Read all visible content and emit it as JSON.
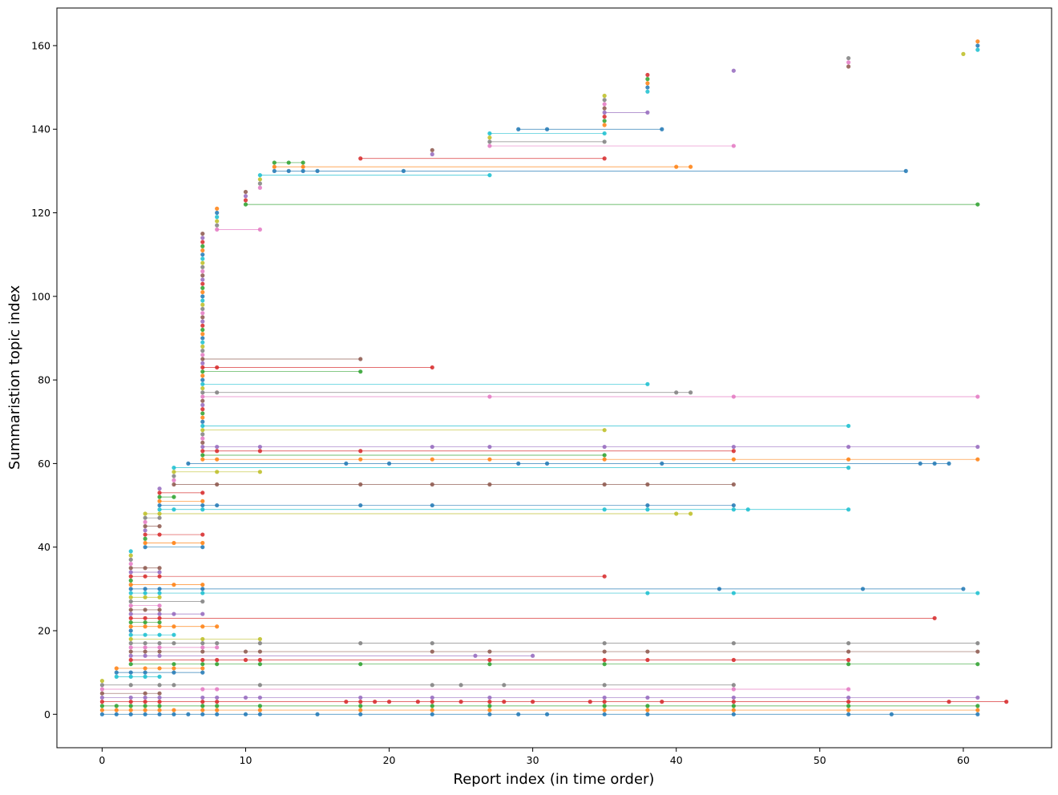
{
  "chart_data": {
    "type": "scatter",
    "title": "",
    "xlabel": "Report index (in time order)",
    "ylabel": "Summaristion topic index",
    "xlim": [
      -3.15,
      66.15
    ],
    "ylim": [
      -8,
      169
    ],
    "xticks": [
      0,
      10,
      20,
      30,
      40,
      50,
      60
    ],
    "yticks": [
      0,
      20,
      40,
      60,
      80,
      100,
      120,
      140,
      160
    ],
    "grid": false,
    "legend": "none",
    "palette": [
      "#1f77b4",
      "#ff7f0e",
      "#2ca02c",
      "#d62728",
      "#9467bd",
      "#8c564b",
      "#e377c2",
      "#7f7f7f",
      "#bcbd22",
      "#17becf"
    ],
    "topics": [
      {
        "topic": 0,
        "reports": [
          0,
          1,
          2,
          3,
          4,
          5,
          6,
          7,
          8,
          10,
          11,
          15,
          18,
          23,
          27,
          29,
          31,
          35,
          38,
          44,
          52,
          55,
          61
        ]
      },
      {
        "topic": 1,
        "reports": [
          0,
          1,
          2,
          3,
          4,
          5,
          7,
          8,
          11,
          18,
          23,
          27,
          35,
          38,
          44,
          52,
          61
        ]
      },
      {
        "topic": 2,
        "reports": [
          0,
          1,
          2,
          3,
          4,
          7,
          8,
          11,
          18,
          23,
          27,
          35,
          38,
          44,
          52,
          61
        ]
      },
      {
        "topic": 3,
        "reports": [
          0,
          2,
          3,
          4,
          7,
          8,
          17,
          18,
          19,
          20,
          22,
          23,
          25,
          27,
          28,
          30,
          34,
          35,
          39,
          44,
          52,
          59,
          63
        ]
      },
      {
        "topic": 4,
        "reports": [
          0,
          2,
          3,
          4,
          7,
          8,
          10,
          11,
          18,
          23,
          27,
          35,
          38,
          44,
          52,
          61
        ]
      },
      {
        "topic": 5,
        "reports": [
          0,
          3,
          4
        ]
      },
      {
        "topic": 6,
        "reports": [
          0,
          7,
          8,
          44,
          52
        ]
      },
      {
        "topic": 7,
        "reports": [
          0,
          2,
          4,
          5,
          11,
          23,
          25,
          28,
          35,
          44
        ]
      },
      {
        "topic": 8,
        "reports": [
          0
        ]
      },
      {
        "topic": 9,
        "reports": [
          1,
          2,
          3,
          4
        ]
      },
      {
        "topic": 10,
        "reports": [
          1,
          2,
          3,
          5,
          7
        ]
      },
      {
        "topic": 11,
        "reports": [
          1,
          3,
          4,
          5,
          7
        ]
      },
      {
        "topic": 12,
        "reports": [
          2,
          5,
          7,
          8,
          11,
          18,
          27,
          35,
          52,
          61
        ]
      },
      {
        "topic": 13,
        "reports": [
          2,
          7,
          8,
          10,
          11,
          27,
          35,
          38,
          44,
          52
        ]
      },
      {
        "topic": 14,
        "reports": [
          2,
          3,
          4,
          26,
          30
        ]
      },
      {
        "topic": 15,
        "reports": [
          2,
          3,
          4,
          7,
          10,
          11,
          23,
          27,
          35,
          38,
          52,
          61
        ]
      },
      {
        "topic": 16,
        "reports": [
          2,
          3,
          4,
          7,
          8
        ]
      },
      {
        "topic": 17,
        "reports": [
          2,
          3,
          4,
          5,
          7,
          8,
          11,
          18,
          23,
          35,
          44,
          52,
          61
        ]
      },
      {
        "topic": 18,
        "reports": [
          2,
          7,
          11
        ]
      },
      {
        "topic": 19,
        "reports": [
          2,
          3,
          4,
          5
        ]
      },
      {
        "topic": 20,
        "reports": [
          2
        ]
      },
      {
        "topic": 21,
        "reports": [
          2,
          3,
          4,
          5,
          7,
          8
        ]
      },
      {
        "topic": 22,
        "reports": [
          2,
          3,
          4
        ]
      },
      {
        "topic": 23,
        "reports": [
          2,
          3,
          4,
          58
        ]
      },
      {
        "topic": 24,
        "reports": [
          2,
          4,
          5,
          7
        ]
      },
      {
        "topic": 25,
        "reports": [
          2,
          3,
          4
        ]
      },
      {
        "topic": 26,
        "reports": [
          2,
          4
        ]
      },
      {
        "topic": 27,
        "reports": [
          2,
          7
        ]
      },
      {
        "topic": 28,
        "reports": [
          2,
          3,
          4
        ]
      },
      {
        "topic": 29,
        "reports": [
          2,
          3,
          4,
          7,
          38,
          44,
          61
        ]
      },
      {
        "topic": 30,
        "reports": [
          2,
          3,
          4,
          7,
          43,
          53,
          60
        ]
      },
      {
        "topic": 31,
        "reports": [
          2,
          5,
          7
        ]
      },
      {
        "topic": 32,
        "reports": [
          2
        ]
      },
      {
        "topic": 33,
        "reports": [
          2,
          3,
          4,
          35
        ]
      },
      {
        "topic": 34,
        "reports": [
          2,
          4
        ]
      },
      {
        "topic": 35,
        "reports": [
          2,
          3,
          4
        ]
      },
      {
        "topic": 36,
        "reports": [
          2
        ]
      },
      {
        "topic": 37,
        "reports": [
          2
        ]
      },
      {
        "topic": 38,
        "reports": [
          2
        ]
      },
      {
        "topic": 39,
        "reports": [
          2
        ]
      },
      {
        "topic": 40,
        "reports": [
          3,
          7
        ]
      },
      {
        "topic": 41,
        "reports": [
          3,
          5,
          7
        ]
      },
      {
        "topic": 42,
        "reports": [
          3
        ]
      },
      {
        "topic": 43,
        "reports": [
          3,
          4,
          7
        ]
      },
      {
        "topic": 44,
        "reports": [
          3
        ]
      },
      {
        "topic": 45,
        "reports": [
          3,
          4
        ]
      },
      {
        "topic": 46,
        "reports": [
          3
        ]
      },
      {
        "topic": 47,
        "reports": [
          3,
          4
        ]
      },
      {
        "topic": 48,
        "reports": [
          3,
          4,
          40,
          41
        ]
      },
      {
        "topic": 49,
        "reports": [
          4,
          5,
          7,
          35,
          38,
          44,
          45,
          52
        ]
      },
      {
        "topic": 50,
        "reports": [
          4,
          7,
          8,
          18,
          23,
          38,
          44
        ]
      },
      {
        "topic": 51,
        "reports": [
          4,
          7
        ]
      },
      {
        "topic": 52,
        "reports": [
          4,
          5
        ]
      },
      {
        "topic": 53,
        "reports": [
          4,
          7
        ]
      },
      {
        "topic": 54,
        "reports": [
          4
        ]
      },
      {
        "topic": 55,
        "reports": [
          5,
          8,
          18,
          23,
          27,
          35,
          38,
          44
        ]
      },
      {
        "topic": 56,
        "reports": [
          5
        ]
      },
      {
        "topic": 57,
        "reports": [
          5
        ]
      },
      {
        "topic": 58,
        "reports": [
          5,
          8,
          11
        ]
      },
      {
        "topic": 59,
        "reports": [
          5,
          52
        ]
      },
      {
        "topic": 60,
        "reports": [
          6,
          17,
          20,
          29,
          31,
          39,
          57,
          58,
          59
        ]
      },
      {
        "topic": 61,
        "reports": [
          7,
          8,
          18,
          23,
          27,
          35,
          44,
          52,
          61
        ]
      },
      {
        "topic": 62,
        "reports": [
          7,
          35
        ]
      },
      {
        "topic": 63,
        "reports": [
          7,
          8,
          11,
          18,
          44
        ]
      },
      {
        "topic": 64,
        "reports": [
          7,
          8,
          11,
          23,
          27,
          35,
          44,
          52,
          61
        ]
      },
      {
        "topic": 65,
        "reports": [
          7
        ]
      },
      {
        "topic": 66,
        "reports": [
          7
        ]
      },
      {
        "topic": 67,
        "reports": [
          7
        ]
      },
      {
        "topic": 68,
        "reports": [
          7,
          35
        ]
      },
      {
        "topic": 69,
        "reports": [
          7,
          52
        ]
      },
      {
        "topic": 70,
        "reports": [
          7
        ]
      },
      {
        "topic": 71,
        "reports": [
          7
        ]
      },
      {
        "topic": 72,
        "reports": [
          7
        ]
      },
      {
        "topic": 73,
        "reports": [
          7
        ]
      },
      {
        "topic": 74,
        "reports": [
          7
        ]
      },
      {
        "topic": 75,
        "reports": [
          7
        ]
      },
      {
        "topic": 76,
        "reports": [
          7,
          27,
          44,
          61
        ]
      },
      {
        "topic": 77,
        "reports": [
          7,
          8,
          40,
          41
        ]
      },
      {
        "topic": 78,
        "reports": [
          7
        ]
      },
      {
        "topic": 79,
        "reports": [
          7,
          38
        ]
      },
      {
        "topic": 80,
        "reports": [
          7
        ]
      },
      {
        "topic": 81,
        "reports": [
          7
        ]
      },
      {
        "topic": 82,
        "reports": [
          7,
          18
        ]
      },
      {
        "topic": 83,
        "reports": [
          7,
          8,
          23
        ]
      },
      {
        "topic": 84,
        "reports": [
          7
        ]
      },
      {
        "topic": 85,
        "reports": [
          7,
          18
        ]
      },
      {
        "topic": 86,
        "reports": [
          7
        ]
      },
      {
        "topic": 87,
        "reports": [
          7
        ]
      },
      {
        "topic": 88,
        "reports": [
          7
        ]
      },
      {
        "topic": 89,
        "reports": [
          7
        ]
      },
      {
        "topic": 90,
        "reports": [
          7
        ]
      },
      {
        "topic": 91,
        "reports": [
          7
        ]
      },
      {
        "topic": 92,
        "reports": [
          7
        ]
      },
      {
        "topic": 93,
        "reports": [
          7
        ]
      },
      {
        "topic": 94,
        "reports": [
          7
        ]
      },
      {
        "topic": 95,
        "reports": [
          7
        ]
      },
      {
        "topic": 96,
        "reports": [
          7
        ]
      },
      {
        "topic": 97,
        "reports": [
          7
        ]
      },
      {
        "topic": 98,
        "reports": [
          7
        ]
      },
      {
        "topic": 99,
        "reports": [
          7
        ]
      },
      {
        "topic": 100,
        "reports": [
          7
        ]
      },
      {
        "topic": 101,
        "reports": [
          7
        ]
      },
      {
        "topic": 102,
        "reports": [
          7
        ]
      },
      {
        "topic": 103,
        "reports": [
          7
        ]
      },
      {
        "topic": 104,
        "reports": [
          7
        ]
      },
      {
        "topic": 105,
        "reports": [
          7
        ]
      },
      {
        "topic": 106,
        "reports": [
          7
        ]
      },
      {
        "topic": 107,
        "reports": [
          7
        ]
      },
      {
        "topic": 108,
        "reports": [
          7
        ]
      },
      {
        "topic": 109,
        "reports": [
          7
        ]
      },
      {
        "topic": 110,
        "reports": [
          7
        ]
      },
      {
        "topic": 111,
        "reports": [
          7
        ]
      },
      {
        "topic": 112,
        "reports": [
          7
        ]
      },
      {
        "topic": 113,
        "reports": [
          7
        ]
      },
      {
        "topic": 114,
        "reports": [
          7
        ]
      },
      {
        "topic": 115,
        "reports": [
          7
        ]
      },
      {
        "topic": 116,
        "reports": [
          8,
          11
        ]
      },
      {
        "topic": 117,
        "reports": [
          8
        ]
      },
      {
        "topic": 118,
        "reports": [
          8
        ]
      },
      {
        "topic": 119,
        "reports": [
          8
        ]
      },
      {
        "topic": 120,
        "reports": [
          8
        ]
      },
      {
        "topic": 121,
        "reports": [
          8
        ]
      },
      {
        "topic": 122,
        "reports": [
          10,
          61
        ]
      },
      {
        "topic": 123,
        "reports": [
          10
        ]
      },
      {
        "topic": 124,
        "reports": [
          10
        ]
      },
      {
        "topic": 125,
        "reports": [
          10
        ]
      },
      {
        "topic": 126,
        "reports": [
          11
        ]
      },
      {
        "topic": 127,
        "reports": [
          11
        ]
      },
      {
        "topic": 128,
        "reports": [
          11
        ]
      },
      {
        "topic": 129,
        "reports": [
          11,
          27
        ]
      },
      {
        "topic": 130,
        "reports": [
          12,
          13,
          14,
          15,
          21,
          56
        ]
      },
      {
        "topic": 131,
        "reports": [
          12,
          14,
          40,
          41
        ]
      },
      {
        "topic": 132,
        "reports": [
          12,
          13,
          14
        ]
      },
      {
        "topic": 133,
        "reports": [
          18,
          35
        ]
      },
      {
        "topic": 134,
        "reports": [
          23
        ]
      },
      {
        "topic": 135,
        "reports": [
          23
        ]
      },
      {
        "topic": 136,
        "reports": [
          27,
          44
        ]
      },
      {
        "topic": 137,
        "reports": [
          27,
          35
        ]
      },
      {
        "topic": 138,
        "reports": [
          27
        ]
      },
      {
        "topic": 139,
        "reports": [
          27,
          35
        ]
      },
      {
        "topic": 140,
        "reports": [
          29,
          31,
          39
        ]
      },
      {
        "topic": 141,
        "reports": [
          35
        ]
      },
      {
        "topic": 142,
        "reports": [
          35
        ]
      },
      {
        "topic": 143,
        "reports": [
          35
        ]
      },
      {
        "topic": 144,
        "reports": [
          35,
          38
        ]
      },
      {
        "topic": 145,
        "reports": [
          35
        ]
      },
      {
        "topic": 146,
        "reports": [
          35
        ]
      },
      {
        "topic": 147,
        "reports": [
          35
        ]
      },
      {
        "topic": 148,
        "reports": [
          35
        ]
      },
      {
        "topic": 149,
        "reports": [
          38
        ]
      },
      {
        "topic": 150,
        "reports": [
          38
        ]
      },
      {
        "topic": 151,
        "reports": [
          38
        ]
      },
      {
        "topic": 152,
        "reports": [
          38
        ]
      },
      {
        "topic": 153,
        "reports": [
          38
        ]
      },
      {
        "topic": 154,
        "reports": [
          44
        ]
      },
      {
        "topic": 155,
        "reports": [
          52
        ]
      },
      {
        "topic": 156,
        "reports": [
          52
        ]
      },
      {
        "topic": 157,
        "reports": [
          52
        ]
      },
      {
        "topic": 158,
        "reports": [
          60
        ]
      },
      {
        "topic": 159,
        "reports": [
          61
        ]
      },
      {
        "topic": 160,
        "reports": [
          61
        ]
      },
      {
        "topic": 161,
        "reports": [
          61
        ]
      }
    ]
  }
}
